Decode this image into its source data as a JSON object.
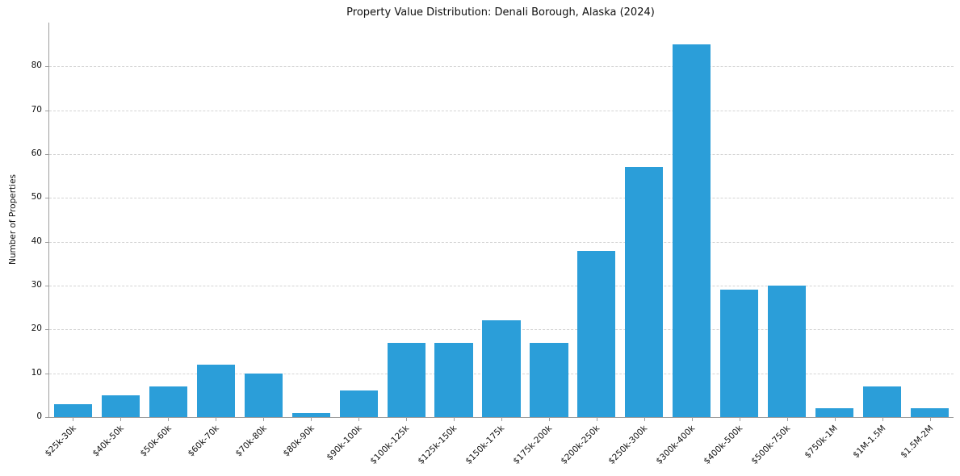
{
  "chart_data": {
    "type": "bar",
    "title": "Property Value Distribution: Denali Borough, Alaska (2024)",
    "xlabel": "",
    "ylabel": "Number of Properties",
    "categories": [
      "$25k-30k",
      "$40k-50k",
      "$50k-60k",
      "$60k-70k",
      "$70k-80k",
      "$80k-90k",
      "$90k-100k",
      "$100k-125k",
      "$125k-150k",
      "$150k-175k",
      "$175k-200k",
      "$200k-250k",
      "$250k-300k",
      "$300k-400k",
      "$400k-500k",
      "$500k-750k",
      "$750k-1M",
      "$1M-1.5M",
      "$1.5M-2M"
    ],
    "values": [
      3,
      5,
      7,
      12,
      10,
      1,
      6,
      17,
      17,
      22,
      17,
      38,
      57,
      85,
      29,
      30,
      2,
      7,
      2
    ],
    "yticks": [
      0,
      10,
      20,
      30,
      40,
      50,
      60,
      70,
      80
    ],
    "ylim": [
      0,
      90
    ],
    "bar_color": "#2b9ed9",
    "grid": "horizontal-dashed",
    "legend_position": "none"
  }
}
